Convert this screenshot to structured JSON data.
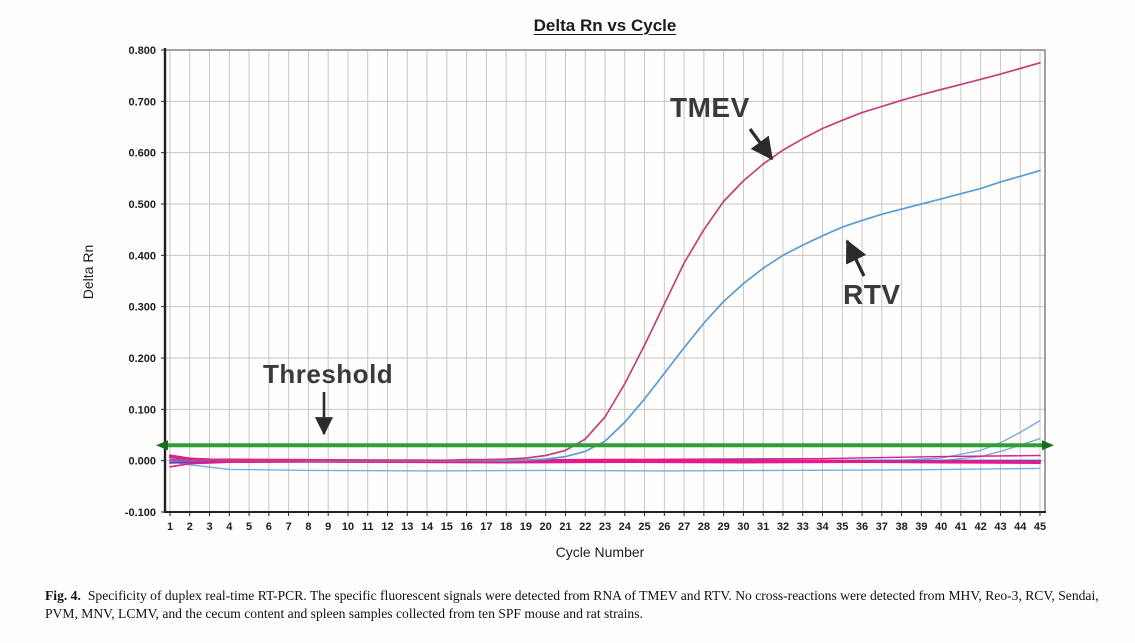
{
  "figure": {
    "title": "Delta Rn vs Cycle",
    "y_axis_label": "Delta Rn",
    "x_axis_label": "Cycle Number",
    "y_ticks": [
      "0.800",
      "0.700",
      "0.600",
      "0.500",
      "0.400",
      "0.300",
      "0.200",
      "0.100",
      "0.000",
      "-0.100"
    ],
    "x_ticks": [
      1,
      2,
      3,
      4,
      5,
      6,
      7,
      8,
      9,
      10,
      11,
      12,
      13,
      14,
      15,
      16,
      17,
      18,
      19,
      20,
      21,
      22,
      23,
      24,
      25,
      26,
      27,
      28,
      29,
      30,
      31,
      32,
      33,
      34,
      35,
      36,
      37,
      38,
      39,
      40,
      41,
      42,
      43,
      44,
      45
    ]
  },
  "colors": {
    "grid": "#c6c6c6",
    "plot_border": "#666666",
    "axis": "#222222",
    "tick_text": "#1d1d1d",
    "tmev_curve": "#c2417a",
    "rtv_curve": "#5b9bd5",
    "baseline_pink": "#e8198b",
    "baseline_blue": "#2f6fd6",
    "baseline_purple": "#7b2fbe",
    "baseline_lightblue": "#74b0e0",
    "threshold_green": "#2f9e35",
    "annotation_text": "#3a3a3a"
  },
  "chart_data": {
    "type": "line",
    "title": "Delta Rn vs Cycle",
    "xlabel": "Cycle Number",
    "ylabel": "Delta Rn",
    "xlim": [
      1,
      45
    ],
    "ylim": [
      -0.1,
      0.8
    ],
    "y_tick_step": 0.1,
    "grid": true,
    "legend_position": "none",
    "threshold": {
      "value": 0.03,
      "color": "#2f9e35",
      "style": "horizontal-line-with-arrowheads-both-ends"
    },
    "x": [
      1,
      2,
      3,
      4,
      5,
      6,
      7,
      8,
      9,
      10,
      11,
      12,
      13,
      14,
      15,
      16,
      17,
      18,
      19,
      20,
      21,
      22,
      23,
      24,
      25,
      26,
      27,
      28,
      29,
      30,
      31,
      32,
      33,
      34,
      35,
      36,
      37,
      38,
      39,
      40,
      41,
      42,
      43,
      44,
      45
    ],
    "series": [
      {
        "name": "TMEV",
        "color": "#c2417a",
        "width": 1.7,
        "values": [
          0.002,
          0.001,
          0.0,
          0.0,
          0.0,
          0.0,
          0.0,
          0.001,
          0.001,
          0.001,
          0.001,
          0.001,
          0.001,
          0.001,
          0.001,
          0.002,
          0.002,
          0.003,
          0.005,
          0.01,
          0.02,
          0.042,
          0.085,
          0.15,
          0.225,
          0.305,
          0.385,
          0.45,
          0.505,
          0.545,
          0.578,
          0.605,
          0.627,
          0.647,
          0.663,
          0.678,
          0.69,
          0.702,
          0.713,
          0.723,
          0.733,
          0.743,
          0.753,
          0.764,
          0.775
        ]
      },
      {
        "name": "RTV",
        "color": "#5b9bd5",
        "width": 1.7,
        "values": [
          0.0,
          0.0,
          0.0,
          0.0,
          0.0,
          0.0,
          0.0,
          0.0,
          0.0,
          0.0,
          0.0,
          0.0,
          0.0,
          0.0,
          0.0,
          0.0,
          0.0,
          0.0,
          0.001,
          0.003,
          0.008,
          0.018,
          0.038,
          0.075,
          0.12,
          0.17,
          0.22,
          0.268,
          0.31,
          0.345,
          0.375,
          0.4,
          0.42,
          0.438,
          0.455,
          0.468,
          0.48,
          0.49,
          0.5,
          0.51,
          0.52,
          0.53,
          0.543,
          0.554,
          0.565
        ]
      },
      {
        "name": "baseline-pink-a",
        "color": "#e8198b",
        "width": 2.2,
        "points": [
          [
            1,
            0.01
          ],
          [
            2,
            0.004
          ],
          [
            3,
            0.002
          ],
          [
            6,
            0.001
          ],
          [
            10,
            0.0
          ],
          [
            14,
            -0.001
          ],
          [
            20,
            0.0
          ],
          [
            26,
            0.0
          ],
          [
            30,
            -0.001
          ],
          [
            34,
            0.0
          ],
          [
            38,
            -0.002
          ],
          [
            41,
            -0.001
          ],
          [
            45,
            -0.002
          ]
        ]
      },
      {
        "name": "baseline-pink-b",
        "color": "#e8198b",
        "width": 1.6,
        "points": [
          [
            1,
            -0.012
          ],
          [
            2,
            -0.006
          ],
          [
            4,
            -0.003
          ],
          [
            8,
            -0.002
          ],
          [
            12,
            -0.003
          ],
          [
            18,
            -0.004
          ],
          [
            24,
            -0.003
          ],
          [
            30,
            -0.004
          ],
          [
            36,
            -0.003
          ],
          [
            40,
            -0.004
          ],
          [
            45,
            -0.005
          ]
        ]
      },
      {
        "name": "baseline-pink-c",
        "color": "#e8198b",
        "width": 1.4,
        "points": [
          [
            1,
            0.006
          ],
          [
            3,
            0.003
          ],
          [
            8,
            0.002
          ],
          [
            15,
            0.001
          ],
          [
            22,
            0.002
          ],
          [
            28,
            0.003
          ],
          [
            34,
            0.004
          ],
          [
            40,
            0.008
          ],
          [
            45,
            0.01
          ]
        ]
      },
      {
        "name": "baseline-blue-a",
        "color": "#2f6fd6",
        "width": 2.2,
        "points": [
          [
            1,
            0.007
          ],
          [
            2,
            0.003
          ],
          [
            4,
            0.001
          ],
          [
            10,
            0.0
          ],
          [
            16,
            -0.001
          ],
          [
            22,
            0.0
          ],
          [
            28,
            0.001
          ],
          [
            34,
            0.0
          ],
          [
            40,
            0.0
          ],
          [
            45,
            0.0
          ]
        ]
      },
      {
        "name": "baseline-purple",
        "color": "#7b2fbe",
        "width": 2.0,
        "points": [
          [
            1,
            -0.004
          ],
          [
            3,
            -0.002
          ],
          [
            10,
            -0.002
          ],
          [
            20,
            -0.002
          ],
          [
            30,
            -0.001
          ],
          [
            38,
            -0.002
          ],
          [
            45,
            -0.002
          ]
        ]
      },
      {
        "name": "baseline-lightblue-low",
        "color": "#74b0e0",
        "width": 1.4,
        "points": [
          [
            1,
            -0.002
          ],
          [
            2,
            -0.008
          ],
          [
            4,
            -0.017
          ],
          [
            8,
            -0.019
          ],
          [
            14,
            -0.02
          ],
          [
            20,
            -0.019
          ],
          [
            26,
            -0.02
          ],
          [
            32,
            -0.019
          ],
          [
            38,
            -0.018
          ],
          [
            45,
            -0.015
          ]
        ]
      },
      {
        "name": "late-rise-lightblue-a",
        "color": "#74b0e0",
        "width": 1.4,
        "points": [
          [
            1,
            0.001
          ],
          [
            30,
            0.0
          ],
          [
            38,
            0.001
          ],
          [
            40,
            0.005
          ],
          [
            42,
            0.02
          ],
          [
            43,
            0.035
          ],
          [
            44,
            0.055
          ],
          [
            45,
            0.078
          ]
        ]
      },
      {
        "name": "late-rise-lightblue-b",
        "color": "#74b0e0",
        "width": 1.4,
        "points": [
          [
            1,
            -0.001
          ],
          [
            32,
            -0.001
          ],
          [
            40,
            0.0
          ],
          [
            42,
            0.008
          ],
          [
            43,
            0.018
          ],
          [
            44,
            0.03
          ],
          [
            45,
            0.043
          ]
        ]
      }
    ],
    "annotations": [
      {
        "label": "TMEV",
        "arrow_points_to": {
          "cycle": 31.5,
          "value": 0.58
        }
      },
      {
        "label": "RTV",
        "arrow_points_to": {
          "cycle": 34.5,
          "value": 0.45
        }
      },
      {
        "label": "Threshold",
        "arrow_points_to": {
          "cycle": 9,
          "value": 0.03
        }
      }
    ]
  },
  "caption": {
    "fig_label": "Fig. 4.",
    "text": "Specificity of duplex real-time RT-PCR. The specific fluorescent signals were detected from RNA of TMEV and RTV. No cross-reactions were detected from MHV, Reo-3, RCV, Sendai, PVM, MNV, LCMV, and the cecum content and spleen samples collected from ten SPF mouse and rat strains."
  }
}
